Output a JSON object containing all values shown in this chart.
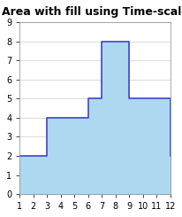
{
  "title": "Area with fill using Time-scale",
  "x_data": [
    1,
    3,
    3,
    6,
    6,
    7,
    7,
    9,
    9,
    12,
    12
  ],
  "y_data": [
    2,
    2,
    4,
    4,
    5,
    5,
    8,
    8,
    5,
    5,
    2
  ],
  "fill_color": "#add8f0",
  "line_color": "#4444cc",
  "line_width": 1.2,
  "xlim": [
    1,
    12
  ],
  "ylim": [
    0,
    9
  ],
  "xticks": [
    1,
    2,
    3,
    4,
    5,
    6,
    7,
    8,
    9,
    10,
    11,
    12
  ],
  "yticks": [
    0,
    1,
    2,
    3,
    4,
    5,
    6,
    7,
    8,
    9
  ],
  "title_fontsize": 9,
  "tick_fontsize": 7,
  "bg_color": "#ffffff",
  "plot_bg_color": "#ffffff"
}
